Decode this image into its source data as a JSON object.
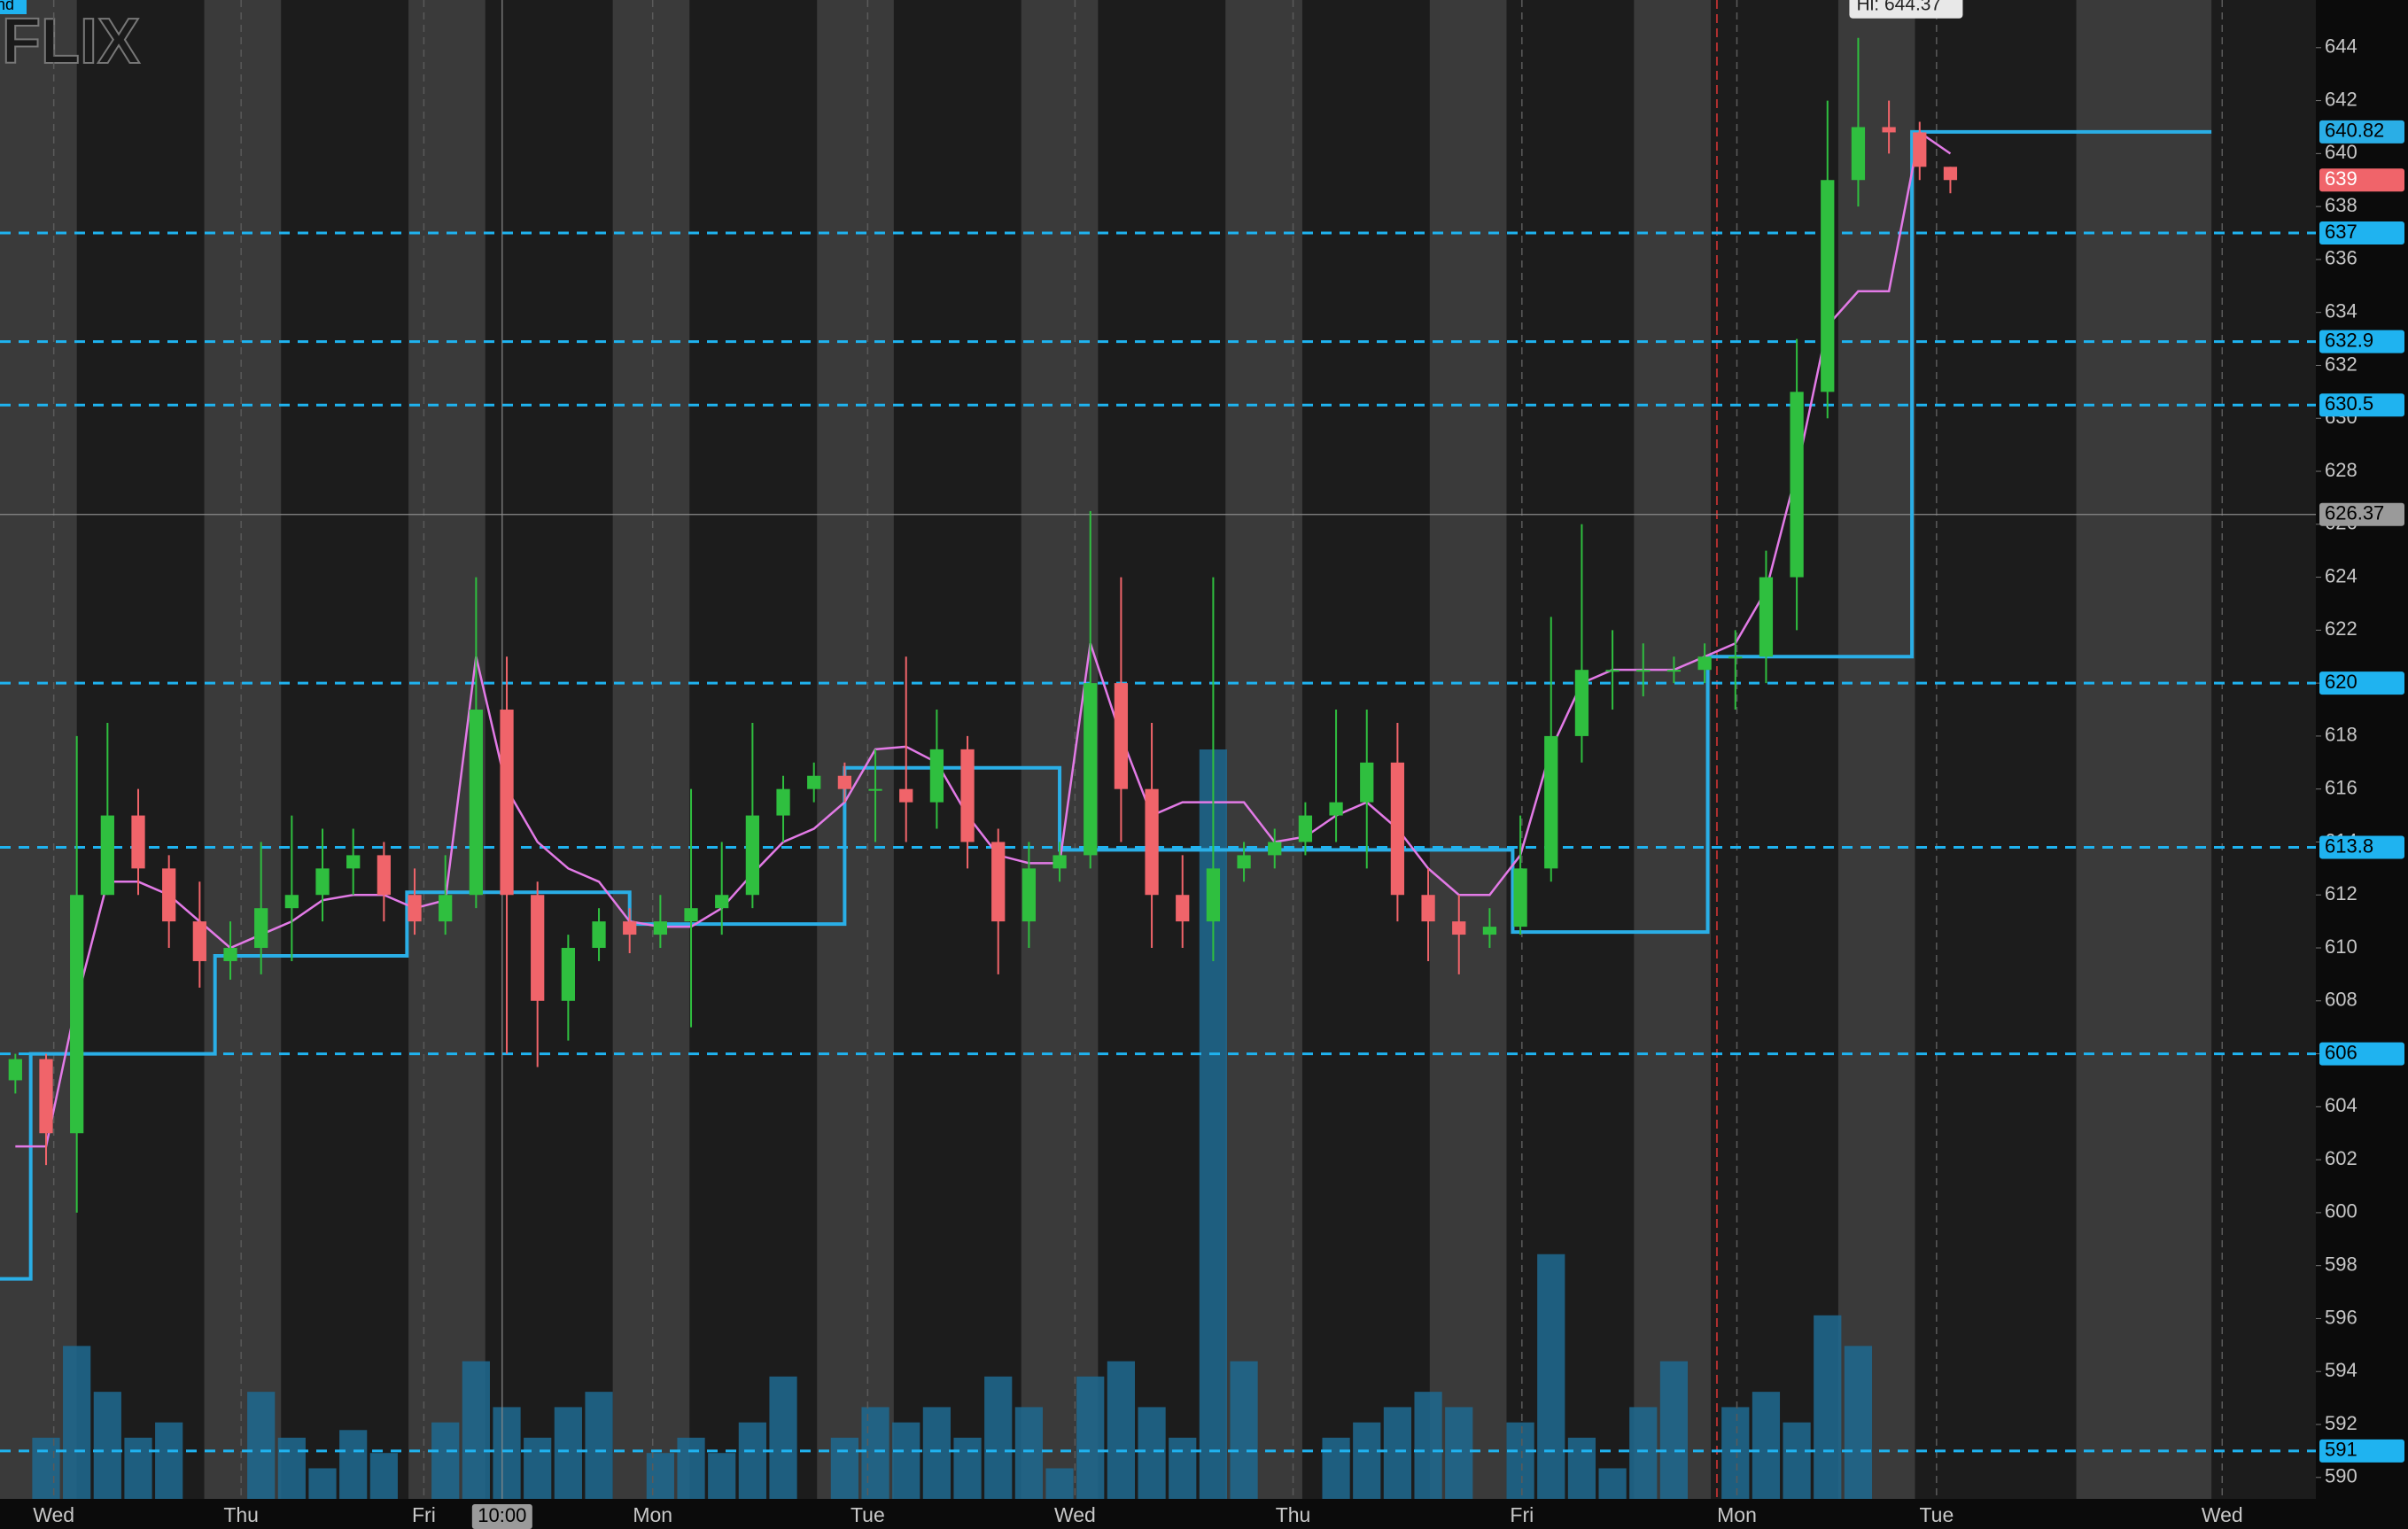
{
  "chart_data": {
    "type": "candlestick",
    "watermark": "FLIX",
    "corner_label": "ind",
    "xlim": [
      0,
      75.4
    ],
    "xticks": [
      {
        "value": 1.75,
        "label": "Wed"
      },
      {
        "value": 7.85,
        "label": "Thu"
      },
      {
        "value": 13.8,
        "label": "Fri"
      },
      {
        "value": 21.25,
        "label": "Mon"
      },
      {
        "value": 28.25,
        "label": "Tue"
      },
      {
        "value": 35,
        "label": "Wed"
      },
      {
        "value": 42.1,
        "label": "Thu"
      },
      {
        "value": 49.55,
        "label": "Fri"
      },
      {
        "value": 56.55,
        "label": "Mon"
      },
      {
        "value": 63.05,
        "label": "Tue"
      },
      {
        "value": 72.35,
        "label": "Wed"
      }
    ],
    "ylim": [
      589.19,
      645.8
    ],
    "yticks": [
      590,
      592,
      594,
      596,
      598,
      600,
      602,
      604,
      606,
      608,
      610,
      612,
      614,
      616,
      618,
      620,
      622,
      624,
      626,
      628,
      630,
      632,
      634,
      636,
      638,
      640,
      642,
      644
    ],
    "candles": {
      "up_color": "#2fbf3f",
      "down_color": "#f0646a",
      "x": [
        0.5,
        1.5,
        2.5,
        3.5,
        4.5,
        5.5,
        6.5,
        7.5,
        8.5,
        9.5,
        10.5,
        11.5,
        12.5,
        13.5,
        14.5,
        15.5,
        16.5,
        17.5,
        18.5,
        19.5,
        20.5,
        21.5,
        22.5,
        23.5,
        24.5,
        25.5,
        26.5,
        27.5,
        28.5,
        29.5,
        30.5,
        31.5,
        32.5,
        33.5,
        34.5,
        35.5,
        36.5,
        37.5,
        38.5,
        39.5,
        40.5,
        41.5,
        42.5,
        43.5,
        44.5,
        45.5,
        46.5,
        47.5,
        48.5,
        49.5,
        50.5,
        51.5,
        52.5,
        53.5,
        54.5,
        55.5,
        56.5,
        57.5,
        58.5,
        59.5,
        60.5,
        61.5,
        62.5,
        63.5
      ],
      "open": [
        605,
        605.8,
        603,
        612,
        615,
        613,
        611,
        609.5,
        610,
        611.5,
        612,
        613,
        613.5,
        612,
        611,
        612,
        619,
        612,
        608,
        610,
        611,
        610.5,
        611,
        611.5,
        612,
        615,
        616,
        616.5,
        616,
        616,
        615.5,
        617.5,
        614,
        611,
        613,
        613.5,
        620,
        616,
        612,
        611,
        613,
        613.5,
        614,
        615,
        615.5,
        617,
        612,
        611,
        610.5,
        610.8,
        613,
        618,
        620.5,
        620.5,
        620.5,
        620.5,
        621,
        621,
        624,
        631,
        639,
        641,
        640.8,
        639.5
      ],
      "high": [
        606,
        606,
        618,
        618.5,
        616,
        613.5,
        612.5,
        611,
        614,
        615,
        614.5,
        614.5,
        614,
        613,
        613.5,
        624,
        621,
        612.5,
        610.5,
        611.5,
        611.5,
        612,
        616,
        614,
        618.5,
        616.5,
        617,
        617,
        617.5,
        621,
        619,
        618,
        614.5,
        614,
        614,
        626.5,
        624,
        618.5,
        613.5,
        624,
        614,
        614.5,
        615.5,
        619,
        619,
        618.5,
        613,
        612,
        611.5,
        615,
        622.5,
        626,
        622,
        621.5,
        621,
        621.5,
        622,
        625,
        633,
        642,
        644.37,
        642,
        641.2,
        639.5
      ],
      "low": [
        604.5,
        601.8,
        600,
        612,
        612,
        610,
        608.5,
        608.8,
        609,
        609.5,
        611,
        612,
        611,
        610.5,
        610.5,
        611.5,
        606,
        605.5,
        606.5,
        609.5,
        609.8,
        610,
        607,
        610.5,
        611.5,
        614,
        615.5,
        615.5,
        614,
        614,
        614.5,
        613,
        609,
        610,
        612.5,
        613,
        614,
        610,
        610,
        609.5,
        612.5,
        613,
        613.5,
        614,
        613,
        611,
        609.5,
        609,
        610,
        610.5,
        612.5,
        617,
        619,
        619.5,
        620,
        620,
        619,
        620,
        622,
        630,
        638,
        640,
        639,
        638.5
      ],
      "close": [
        605.8,
        603,
        612,
        615,
        613,
        611,
        609.5,
        610,
        611.5,
        612,
        613,
        613.5,
        612,
        611,
        612,
        619,
        612,
        608,
        610,
        611,
        610.5,
        611,
        611.5,
        612,
        615,
        616,
        616.5,
        616,
        616,
        615.5,
        617.5,
        614,
        611,
        613,
        613.5,
        620,
        616,
        612,
        611,
        613,
        613.5,
        614,
        615,
        615.5,
        617,
        612,
        611,
        610.5,
        610.8,
        613,
        618,
        620.5,
        620.5,
        620.5,
        620.5,
        621,
        621,
        624,
        631,
        639,
        641,
        640.8,
        639.5,
        639
      ]
    },
    "volume": {
      "color": "#1e6a90",
      "values": [
        0,
        40,
        100,
        70,
        40,
        50,
        0,
        0,
        70,
        40,
        20,
        45,
        30,
        0,
        50,
        90,
        60,
        40,
        60,
        70,
        0,
        30,
        40,
        30,
        50,
        80,
        0,
        40,
        60,
        50,
        60,
        40,
        80,
        60,
        20,
        80,
        90,
        60,
        40,
        490,
        90,
        0,
        0,
        40,
        50,
        60,
        70,
        60,
        0,
        50,
        160,
        40,
        20,
        60,
        90,
        0,
        60,
        70,
        50,
        120,
        100,
        0,
        0,
        0
      ]
    },
    "moving_average": {
      "color": "#e27ae6",
      "values": [
        602.5,
        602.5,
        608,
        612.5,
        612.5,
        612,
        611,
        610,
        610.5,
        611,
        611.8,
        612,
        612,
        611.5,
        611.8,
        621,
        616,
        614,
        613,
        612.5,
        611,
        610.8,
        610.8,
        611.5,
        612.8,
        614,
        614.5,
        615.5,
        617.5,
        617.6,
        617,
        615,
        613.5,
        613.2,
        613.2,
        621.5,
        618,
        615,
        615.5,
        615.5,
        615.5,
        614,
        614.2,
        615,
        615.5,
        614.5,
        613,
        612,
        612,
        613.5,
        617.5,
        620,
        620.5,
        620.5,
        620.5,
        621,
        621.5,
        623.5,
        628,
        633.5,
        634.8,
        634.8,
        640.8,
        640
      ]
    },
    "pivot": {
      "color": "#2aaee6",
      "x": [
        0,
        1,
        7,
        13.25,
        20.5,
        27.5,
        34.5,
        49.25,
        55.6,
        62.25,
        72
      ],
      "values": [
        597.5,
        606,
        609.7,
        612.1,
        610.9,
        616.8,
        613.7,
        610.6,
        621,
        640.82,
        640.82
      ]
    },
    "levels": {
      "color": "#1fb3f0",
      "values": [
        637,
        632.9,
        630.5,
        620,
        613.8,
        606,
        591
      ]
    },
    "divider_x": 55.9,
    "crosshair": {
      "x": 16.35,
      "y": 626.37,
      "time_label": "10:00"
    },
    "high_label": "Hi: 644.37"
  }
}
